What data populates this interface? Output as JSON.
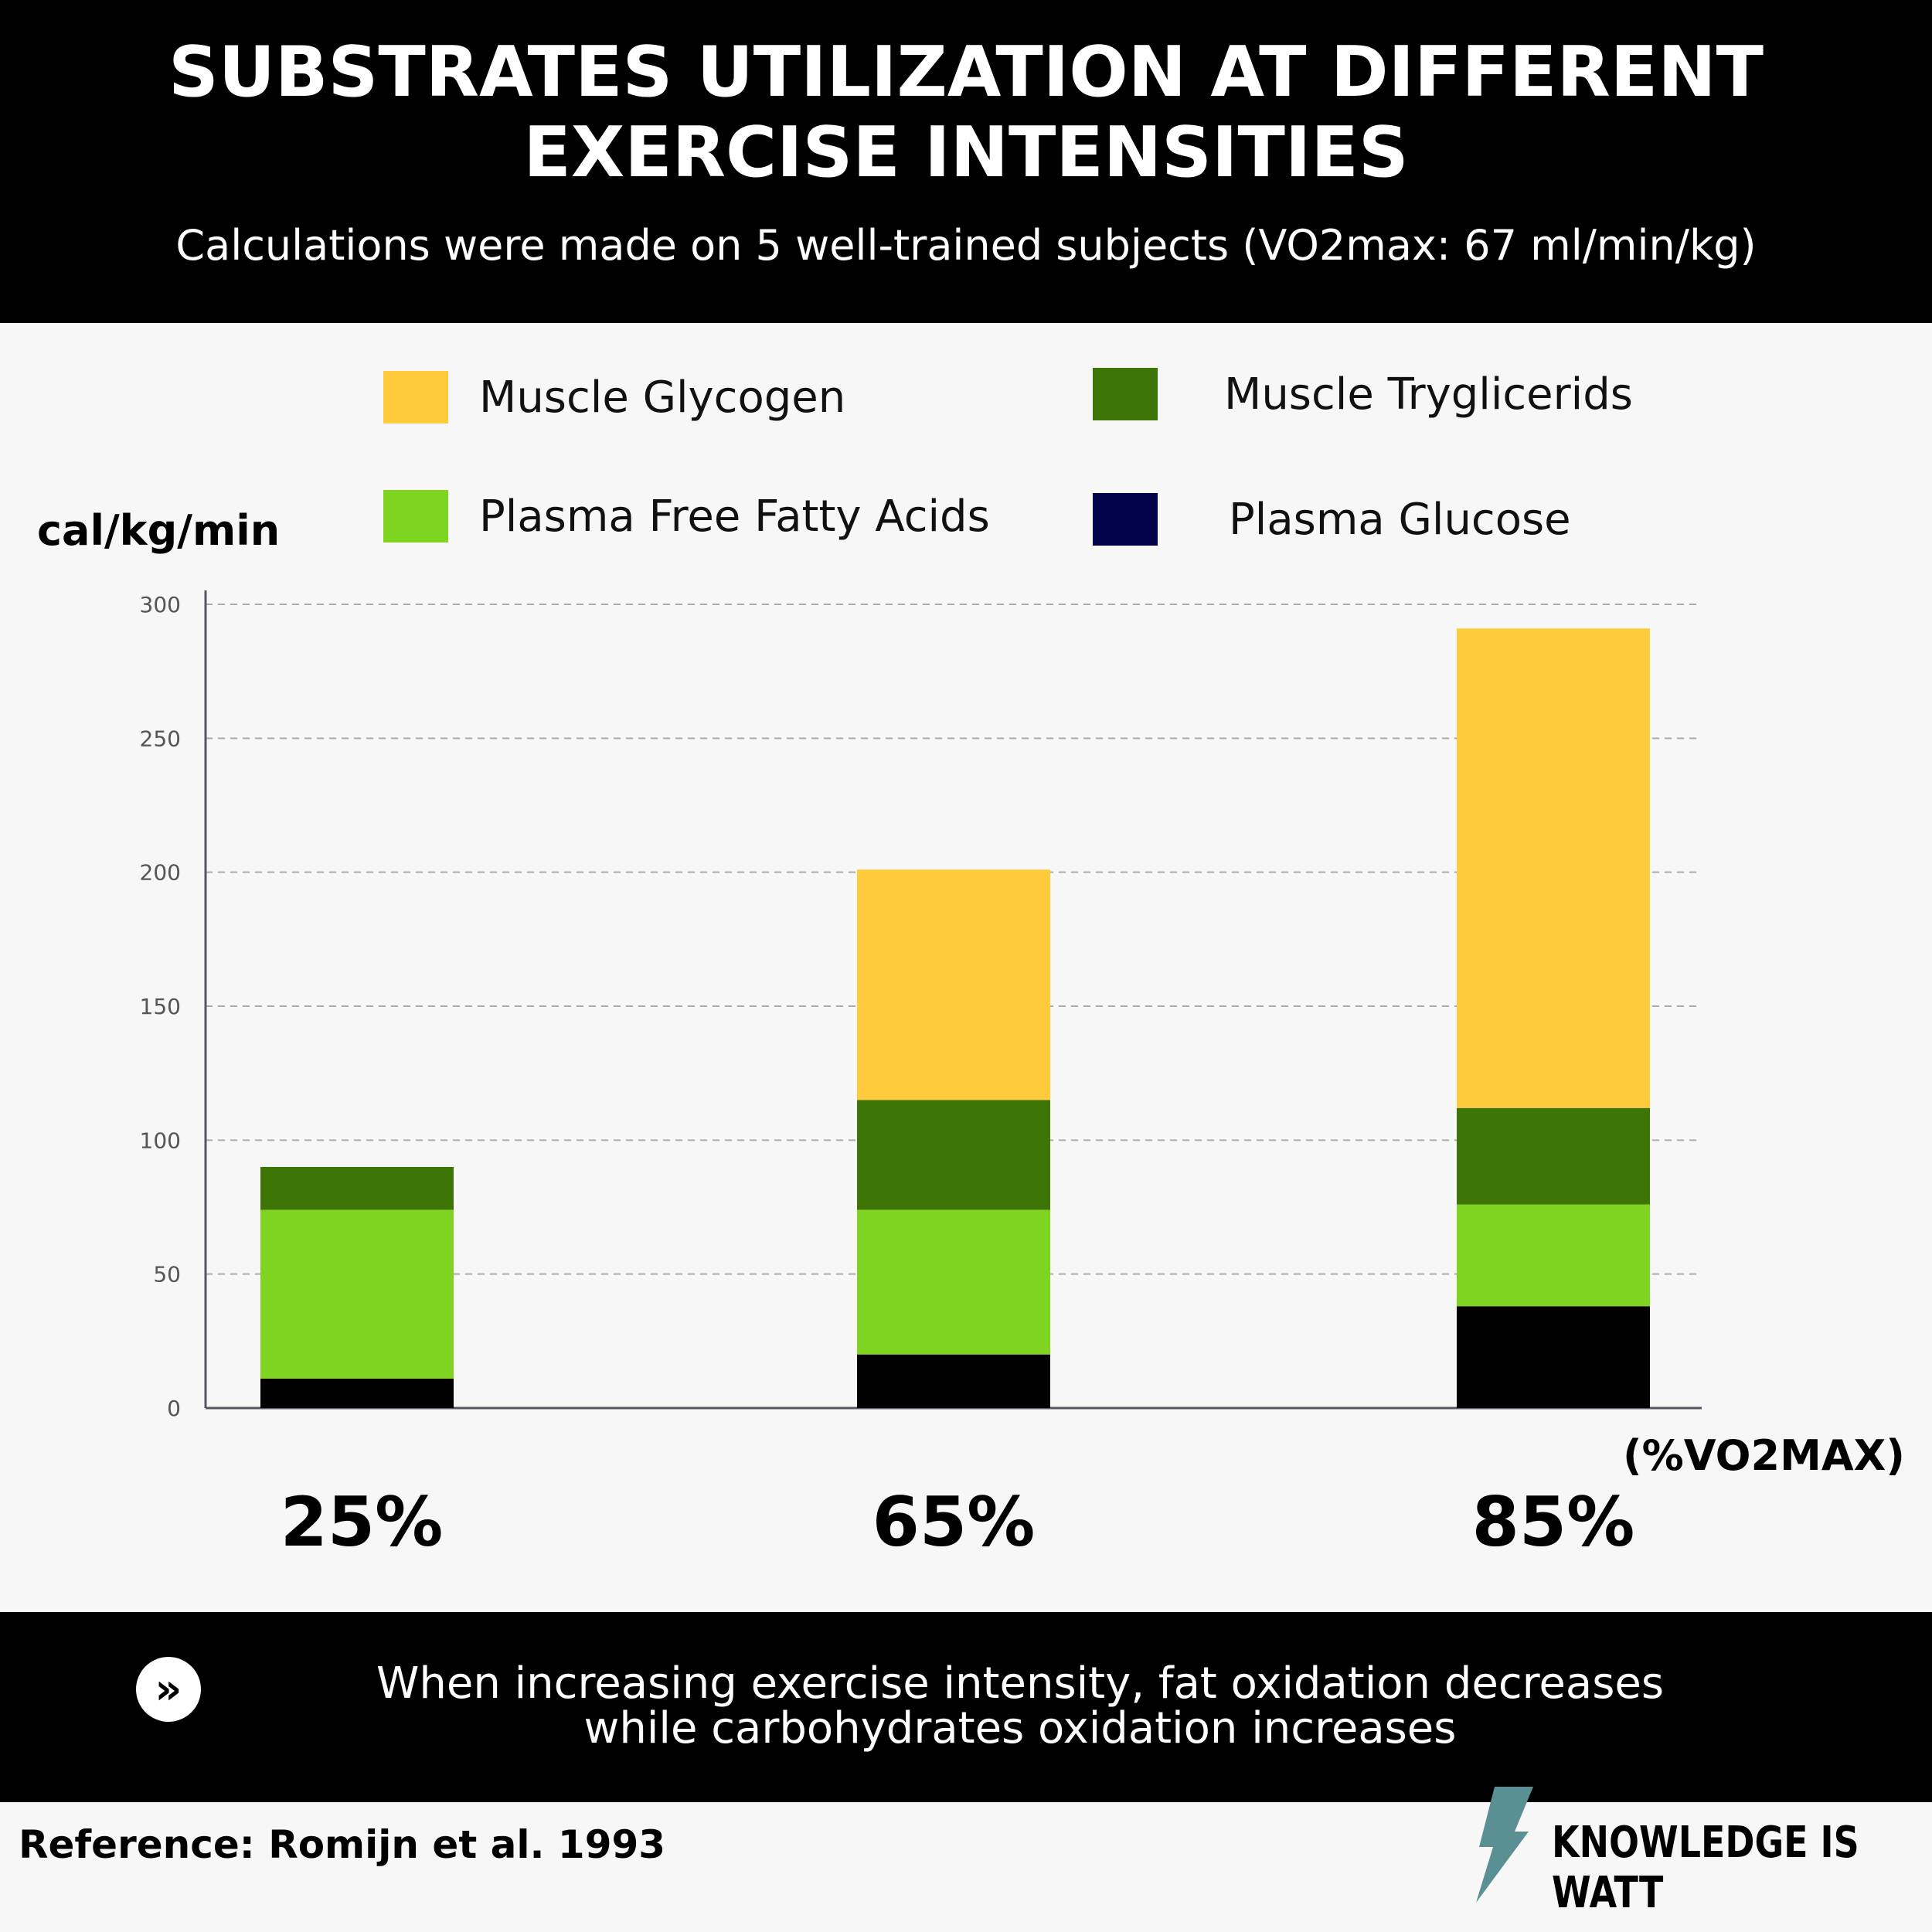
{
  "header": {
    "title_line1": "SUBSTRATES UTILIZATION AT DIFFERENT",
    "title_line2": "EXERCISE INTENSITIES",
    "subtitle": "Calculations were made on 5 well-trained subjects (VO2max: 67 ml/min/kg)"
  },
  "legend": [
    {
      "label": "Muscle Glycogen",
      "color": "#ffcb3d"
    },
    {
      "label": "Muscle Tryglicerids",
      "color": "#3d7507"
    },
    {
      "label": "Plasma Free Fatty Acids",
      "color": "#7fd321"
    },
    {
      "label": "Plasma Glucose",
      "color": "#02024a"
    }
  ],
  "chart_data": {
    "type": "bar",
    "stacked": true,
    "categories": [
      "25%",
      "65%",
      "85%"
    ],
    "ylabel": "cal/kg/min",
    "xlabel": "(%VO2MAX)",
    "ylim": [
      0,
      300
    ],
    "yticks": [
      0,
      50,
      100,
      150,
      200,
      250,
      300
    ],
    "grid": true,
    "legend_position": "top",
    "series": [
      {
        "name": "Plasma Glucose",
        "color": "#000000",
        "values": [
          11,
          20,
          38
        ]
      },
      {
        "name": "Plasma Free Fatty Acids",
        "color": "#7fd321",
        "values": [
          63,
          54,
          38
        ]
      },
      {
        "name": "Muscle Tryglicerids",
        "color": "#3d7507",
        "values": [
          16,
          41,
          36
        ]
      },
      {
        "name": "Muscle Glycogen",
        "color": "#ffcb3d",
        "values": [
          0,
          86,
          179
        ]
      }
    ]
  },
  "footer": {
    "line1": "When increasing exercise intensity, fat oxidation decreases",
    "line2": "while carbohydrates oxidation increases",
    "icon": "double-chevron-right-icon"
  },
  "reference": "Reference: Romijn  et al. 1993",
  "brand": "KNOWLEDGE IS WATT"
}
